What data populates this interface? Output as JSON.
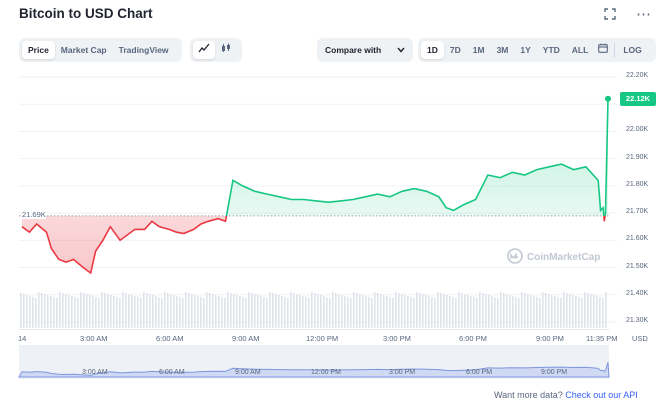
{
  "header": {
    "title": "Bitcoin to USD Chart",
    "expand_icon": "fullscreen-icon",
    "more_icon": "more-horizontal-icon"
  },
  "tabs": [
    {
      "label": "Price",
      "active": true
    },
    {
      "label": "Market Cap",
      "active": false
    },
    {
      "label": "TradingView",
      "active": false
    }
  ],
  "chart_type_toggle": [
    {
      "icon": "line-chart-icon",
      "active": true
    },
    {
      "icon": "candlestick-icon",
      "active": false
    }
  ],
  "compare": {
    "label": "Compare with",
    "icon": "chevron-down-icon"
  },
  "ranges": [
    {
      "label": "1D",
      "active": true
    },
    {
      "label": "7D",
      "active": false
    },
    {
      "label": "1M",
      "active": false
    },
    {
      "label": "3M",
      "active": false
    },
    {
      "label": "1Y",
      "active": false
    },
    {
      "label": "YTD",
      "active": false
    },
    {
      "label": "ALL",
      "active": false
    }
  ],
  "calendar_icon": "calendar-icon",
  "log_label": "LOG",
  "chart": {
    "y_ticks": [
      "22.20K",
      "22.10K",
      "22.00K",
      "21.90K",
      "21.80K",
      "21.70K",
      "21.60K",
      "21.50K",
      "21.40K",
      "21.30K"
    ],
    "current_price": "22.12K",
    "reference_price": "21.69K",
    "x_ticks": [
      "14",
      "3:00 AM",
      "6:00 AM",
      "9:00 AM",
      "12:00 PM",
      "3:00 PM",
      "6:00 PM",
      "9:00 PM",
      "11:35 PM"
    ],
    "currency": "USD",
    "watermark": "CoinMarketCap",
    "navigator_ticks": [
      "3:00 AM",
      "6:00 AM",
      "9:00 AM",
      "12:00 PM",
      "3:00 PM",
      "6:00 PM",
      "9:00 PM"
    ],
    "colors": {
      "up": "#16c784",
      "down": "#ea3943",
      "volume": "#dfe3ea"
    }
  },
  "chart_data": {
    "type": "line",
    "title": "Bitcoin to USD Chart",
    "xlabel": "",
    "ylabel": "USD",
    "ylim": [
      21300,
      22200
    ],
    "baseline": 21690,
    "series": [
      {
        "x": [
          0.0,
          0.3,
          0.6,
          1.0,
          1.2,
          1.5,
          1.8,
          2.1,
          2.5,
          2.8,
          3.0,
          3.3,
          3.6,
          4.0,
          4.3,
          4.6,
          5.0,
          5.3,
          5.6,
          6.0,
          6.3,
          6.6,
          7.0,
          7.3,
          7.6,
          8.0,
          8.3,
          8.6,
          9.0,
          9.5,
          10.0,
          10.5,
          11.0,
          11.5,
          12.0,
          12.5,
          13.0,
          13.5,
          14.0,
          14.5,
          15.0,
          15.5,
          16.0,
          16.5,
          17.0,
          17.3,
          17.6,
          18.0,
          18.5,
          19.0,
          19.5,
          20.0,
          20.5,
          21.0,
          21.5,
          22.0,
          22.5,
          23.0,
          23.3,
          23.5,
          23.6,
          23.7,
          23.75,
          23.8,
          23.9
        ],
        "values": [
          21650,
          21630,
          21660,
          21630,
          21570,
          21530,
          21520,
          21530,
          21500,
          21480,
          21560,
          21600,
          21650,
          21600,
          21620,
          21640,
          21640,
          21670,
          21650,
          21640,
          21630,
          21625,
          21640,
          21660,
          21670,
          21680,
          21670,
          21820,
          21800,
          21780,
          21770,
          21760,
          21750,
          21750,
          21745,
          21740,
          21745,
          21750,
          21760,
          21770,
          21760,
          21780,
          21790,
          21780,
          21760,
          21720,
          21710,
          21730,
          21750,
          21840,
          21830,
          21850,
          21840,
          21860,
          21870,
          21880,
          21860,
          21870,
          21840,
          21820,
          21710,
          21720,
          21670,
          21700,
          22120
        ]
      }
    ]
  },
  "footer": {
    "text": "Want more data?",
    "link": "Check out our API"
  }
}
